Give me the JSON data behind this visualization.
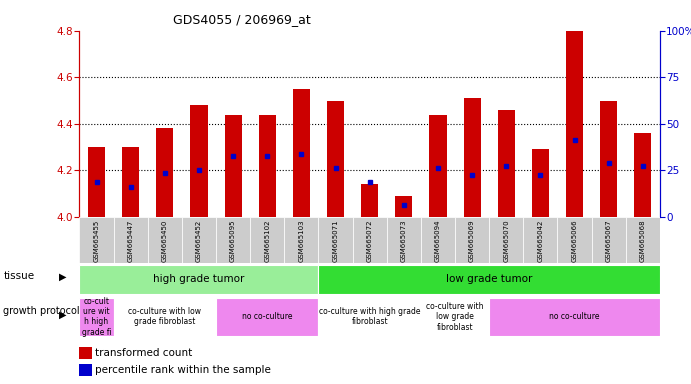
{
  "title": "GDS4055 / 206969_at",
  "samples": [
    "GSM665455",
    "GSM665447",
    "GSM665450",
    "GSM665452",
    "GSM665095",
    "GSM665102",
    "GSM665103",
    "GSM665071",
    "GSM665072",
    "GSM665073",
    "GSM665094",
    "GSM665069",
    "GSM665070",
    "GSM665042",
    "GSM665066",
    "GSM665067",
    "GSM665068"
  ],
  "bar_values": [
    4.3,
    4.3,
    4.38,
    4.48,
    4.44,
    4.44,
    4.55,
    4.5,
    4.14,
    4.09,
    4.44,
    4.51,
    4.46,
    4.29,
    4.8,
    4.5,
    4.36
  ],
  "percentile_values": [
    4.15,
    4.13,
    4.19,
    4.2,
    4.26,
    4.26,
    4.27,
    4.21,
    4.15,
    4.05,
    4.21,
    4.18,
    4.22,
    4.18,
    4.33,
    4.23,
    4.22
  ],
  "bar_color": "#cc0000",
  "percentile_color": "#0000cc",
  "ylim": [
    4.0,
    4.8
  ],
  "yticks": [
    4.0,
    4.2,
    4.4,
    4.6,
    4.8
  ],
  "right_yticks": [
    0,
    25,
    50,
    75,
    100
  ],
  "right_ylim": [
    0,
    100
  ],
  "grid_values": [
    4.2,
    4.4,
    4.6
  ],
  "tissue_groups": [
    {
      "label": "high grade tumor",
      "start": 0,
      "end": 6,
      "color": "#99ee99"
    },
    {
      "label": "low grade tumor",
      "start": 7,
      "end": 16,
      "color": "#33dd33"
    }
  ],
  "growth_groups": [
    {
      "label": "co-cult\nure wit\nh high\ngrade fi",
      "start": 0,
      "end": 0,
      "color": "#ee88ee"
    },
    {
      "label": "co-culture with low\ngrade fibroblast",
      "start": 1,
      "end": 3,
      "color": "#ffffff"
    },
    {
      "label": "no co-culture",
      "start": 4,
      "end": 6,
      "color": "#ee88ee"
    },
    {
      "label": "co-culture with high grade\nfibroblast",
      "start": 7,
      "end": 9,
      "color": "#ffffff"
    },
    {
      "label": "co-culture with\nlow grade\nfibroblast",
      "start": 10,
      "end": 11,
      "color": "#ffffff"
    },
    {
      "label": "no co-culture",
      "start": 12,
      "end": 16,
      "color": "#ee88ee"
    }
  ],
  "bar_color_red": "#cc0000",
  "right_axis_color": "#0000cc",
  "bar_width": 0.5,
  "tick_bg_color": "#cccccc",
  "spine_color_left": "#cc0000",
  "spine_color_right": "#0000cc"
}
